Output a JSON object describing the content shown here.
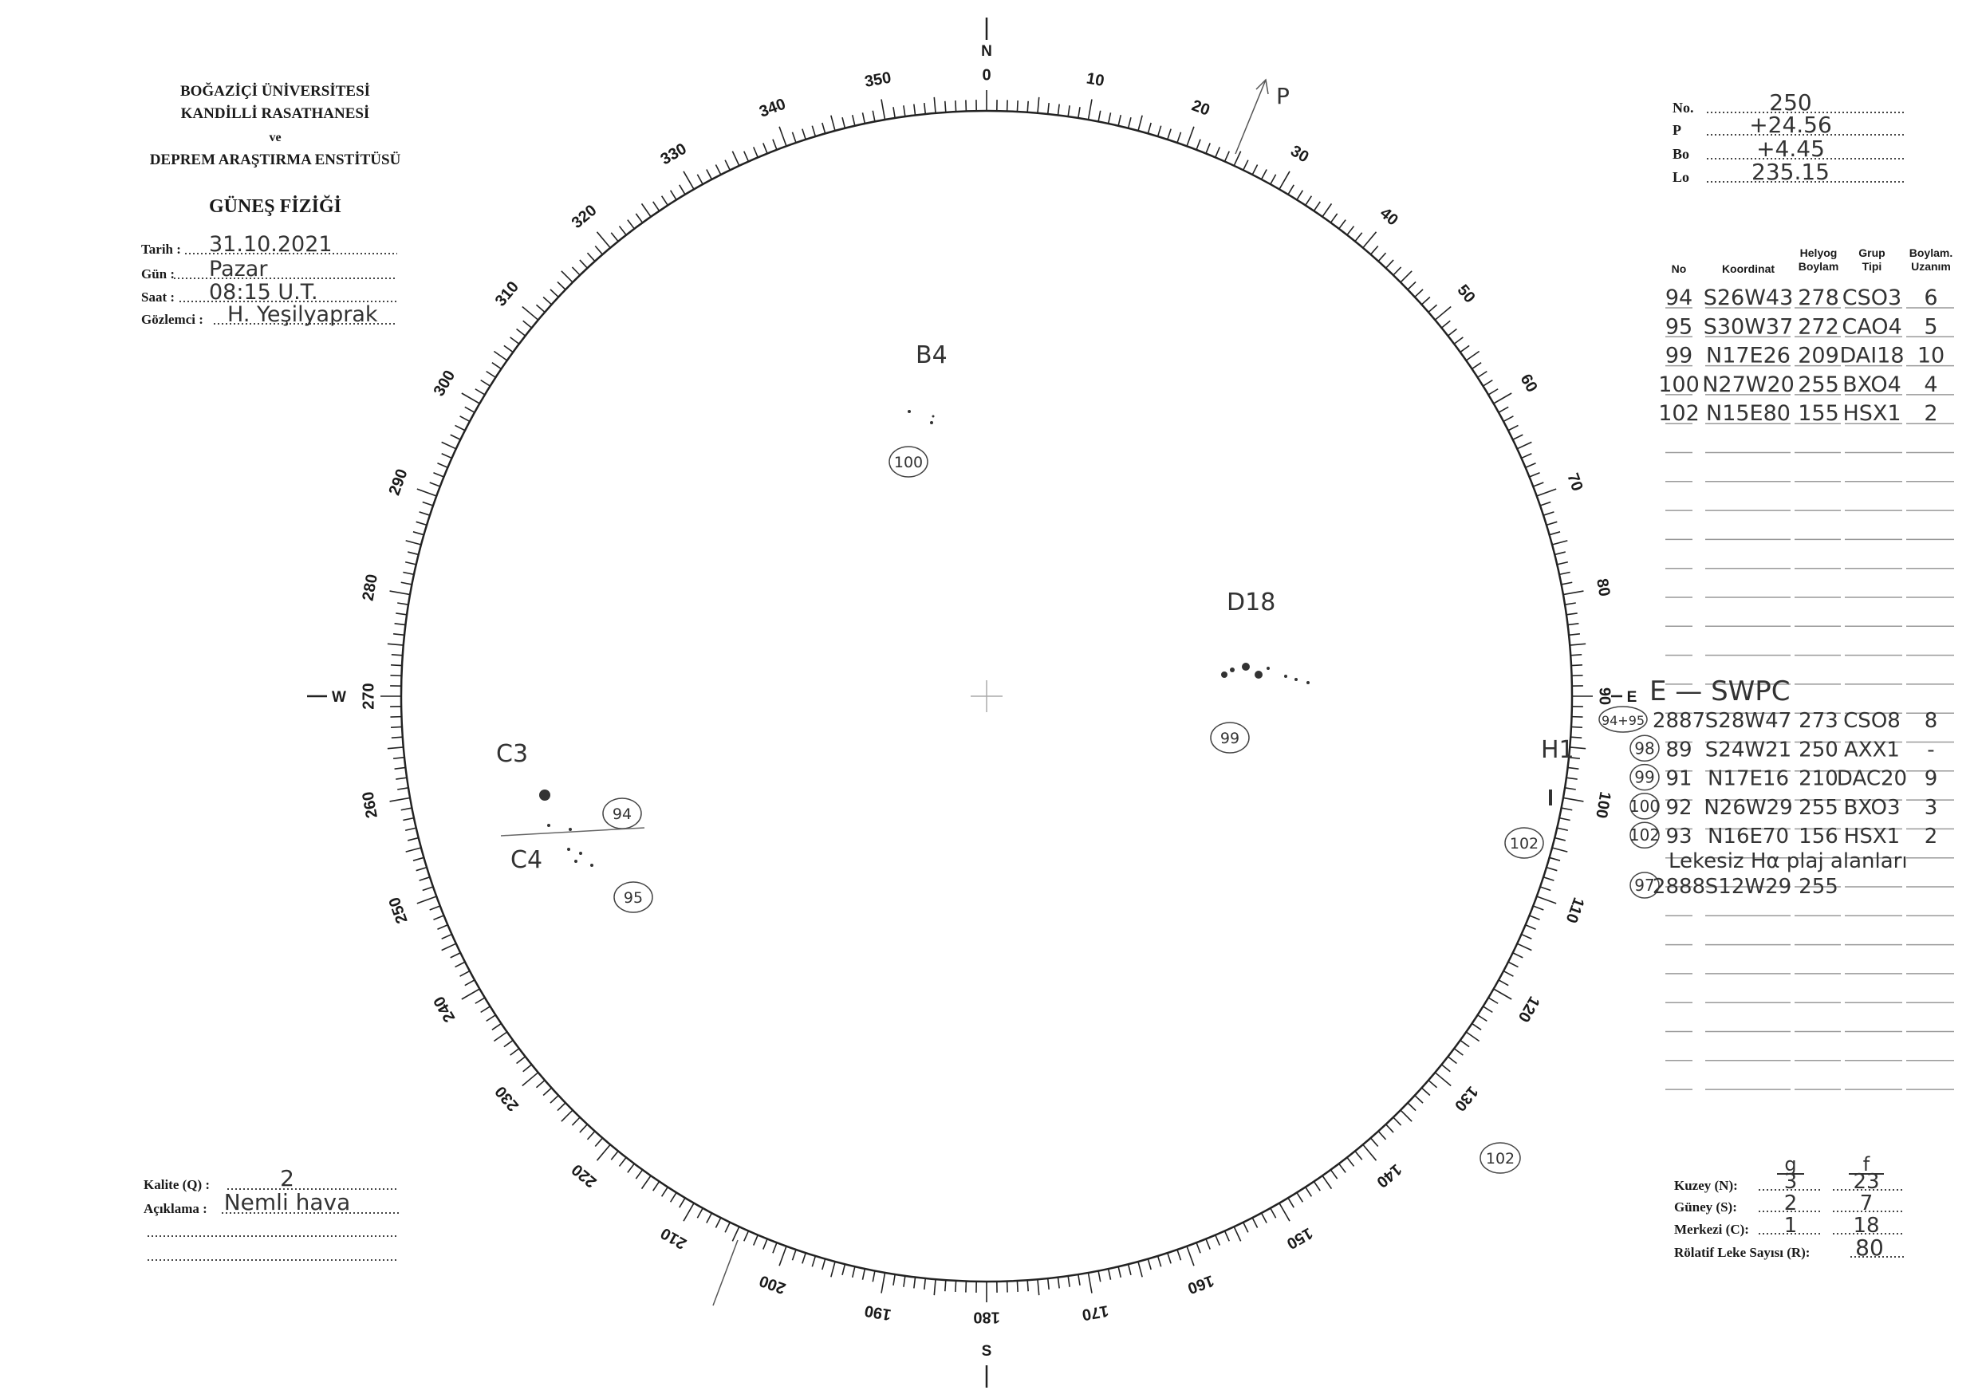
{
  "header": {
    "institution_lines": [
      "BOĞAZİÇİ ÜNİVERSİTESİ",
      "KANDİLLİ RASATHANESİ",
      "ve",
      "DEPREM ARAŞTIRMA ENSTİTÜSÜ"
    ],
    "title": "GÜNEŞ FİZİĞİ"
  },
  "observation": {
    "fields": [
      {
        "label": "Tarih :",
        "value": "31.10.2021"
      },
      {
        "label": "Gün :",
        "value": "Pazar"
      },
      {
        "label": "Saat :",
        "value": "08:15 U.T."
      },
      {
        "label": "Gözlemci :",
        "value": "H. Yeşilyaprak"
      }
    ]
  },
  "ephemeris": {
    "fields": [
      {
        "label": "No.",
        "value": "250"
      },
      {
        "label": "P",
        "value": "+24.56"
      },
      {
        "label": "Bo",
        "value": "+4.45"
      },
      {
        "label": "Lo",
        "value": "235.15"
      }
    ]
  },
  "groups_table": {
    "headers": [
      {
        "lines": [
          "No"
        ]
      },
      {
        "lines": [
          "Koordinat"
        ]
      },
      {
        "lines": [
          "Helyog",
          "Boylam"
        ]
      },
      {
        "lines": [
          "Grup",
          "Tipi"
        ]
      },
      {
        "lines": [
          "Boylam.",
          "Uzanım"
        ]
      }
    ],
    "rows": [
      [
        "94",
        "S26W43",
        "278",
        "CSO3",
        "6"
      ],
      [
        "95",
        "S30W37",
        "272",
        "CAO4",
        "5"
      ],
      [
        "99",
        "N17E26",
        "209",
        "DAI18",
        "10"
      ],
      [
        "100",
        "N27W20",
        "255",
        "BXO4",
        "4"
      ],
      [
        "102",
        "N15E80",
        "155",
        "HSX1",
        "2"
      ]
    ]
  },
  "swpc": {
    "title": "E — SWPC",
    "rows": [
      {
        "ref": "94+95",
        "cells": [
          "2887",
          "S28W47",
          "273",
          "CSO8",
          "8"
        ]
      },
      {
        "ref": "98",
        "cells": [
          "89",
          "S24W21",
          "250",
          "AXX1",
          "-"
        ]
      },
      {
        "ref": "99",
        "cells": [
          "91",
          "N17E16",
          "210",
          "DAC20",
          "9"
        ]
      },
      {
        "ref": "100",
        "cells": [
          "92",
          "N26W29",
          "255",
          "BXO3",
          "3"
        ]
      },
      {
        "ref": "102",
        "cells": [
          "93",
          "N16E70",
          "156",
          "HSX1",
          "2"
        ]
      }
    ],
    "note": "Lekesiz Hα plaj alanları",
    "extra_row": {
      "ref": "97",
      "cells": [
        "2888",
        "S12W29",
        "255",
        "",
        ""
      ]
    }
  },
  "disk": {
    "cardinals": {
      "N": "N",
      "S": "S",
      "E": "E",
      "W": "W"
    },
    "pole_label": "P",
    "annotations": [
      {
        "label": "B4",
        "circle": "100"
      },
      {
        "label": "D18",
        "circle": "99"
      },
      {
        "label": "C3",
        "circle": "94"
      },
      {
        "label": "C4",
        "circle": "95"
      },
      {
        "label": "H1",
        "circle": "102"
      }
    ],
    "limb_circle": "102"
  },
  "quality": {
    "fields": [
      {
        "label": "Kalite (Q) :",
        "value": "2"
      },
      {
        "label": "Açıklama :",
        "value": "Nemli hava"
      }
    ]
  },
  "counts": {
    "col_headers": [
      "g",
      "f"
    ],
    "rows": [
      {
        "label": "Kuzey (N):",
        "g": "3",
        "f": "23"
      },
      {
        "label": "Güney (S):",
        "g": "2",
        "f": "7"
      },
      {
        "label": "Merkezi (C):",
        "g": "1",
        "f": "18"
      }
    ],
    "relative": {
      "label": "Rölatif Leke Sayısı (R):",
      "value": "80"
    }
  }
}
